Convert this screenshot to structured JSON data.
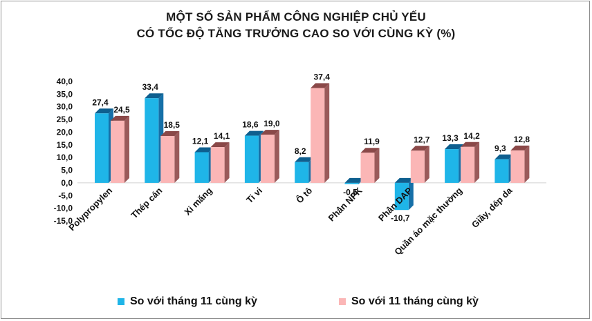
{
  "chart_data": {
    "type": "bar",
    "title": "MỘT SỐ SẢN PHẨM CÔNG NGHIỆP CHỦ YẾU",
    "subtitle": "CÓ TỐC ĐỘ TĂNG TRƯỞNG CAO SO VỚI CÙNG KỲ (%)",
    "categories": [
      "Polypropylen",
      "Thép cán",
      "Xi măng",
      "Ti vi",
      "Ô tô",
      "Phân NPK",
      "Phân DAP",
      "Quần áo mặc thường",
      "Giầy, dép da"
    ],
    "series": [
      {
        "name": "So với tháng 11 cùng kỳ",
        "values": [
          27.4,
          33.4,
          12.1,
          18.6,
          8.2,
          -0.5,
          -10.7,
          13.3,
          9.3
        ],
        "labels": [
          "27,4",
          "33,4",
          "12,1",
          "18,6",
          "8,2",
          "-0,5",
          "-10,7",
          "13,3",
          "9,3"
        ]
      },
      {
        "name": "So với 11 tháng cùng kỳ",
        "values": [
          24.5,
          18.5,
          14.1,
          19.0,
          37.4,
          11.9,
          12.7,
          14.2,
          12.8
        ],
        "labels": [
          "24,5",
          "18,5",
          "14,1",
          "19,0",
          "37,4",
          "11,9",
          "12,7",
          "14,2",
          "12,8"
        ]
      }
    ],
    "y_ticks": [
      "40,0",
      "35,0",
      "30,0",
      "25,0",
      "20,0",
      "15,0",
      "10,0",
      "5,0",
      "0,0",
      "-5,0",
      "-10,0",
      "-15,0"
    ],
    "ylim": [
      -15,
      40
    ],
    "grid": false,
    "legend": "bottom",
    "xlabel": "",
    "ylabel": ""
  },
  "colors": {
    "series1_front": "#1fb5e8",
    "series1_side": "#1670a8",
    "series1_top": "#0e5f8f",
    "series2_front": "#fbb6b6",
    "series2_side": "#9a5a5a",
    "series2_top": "#8a4848"
  }
}
